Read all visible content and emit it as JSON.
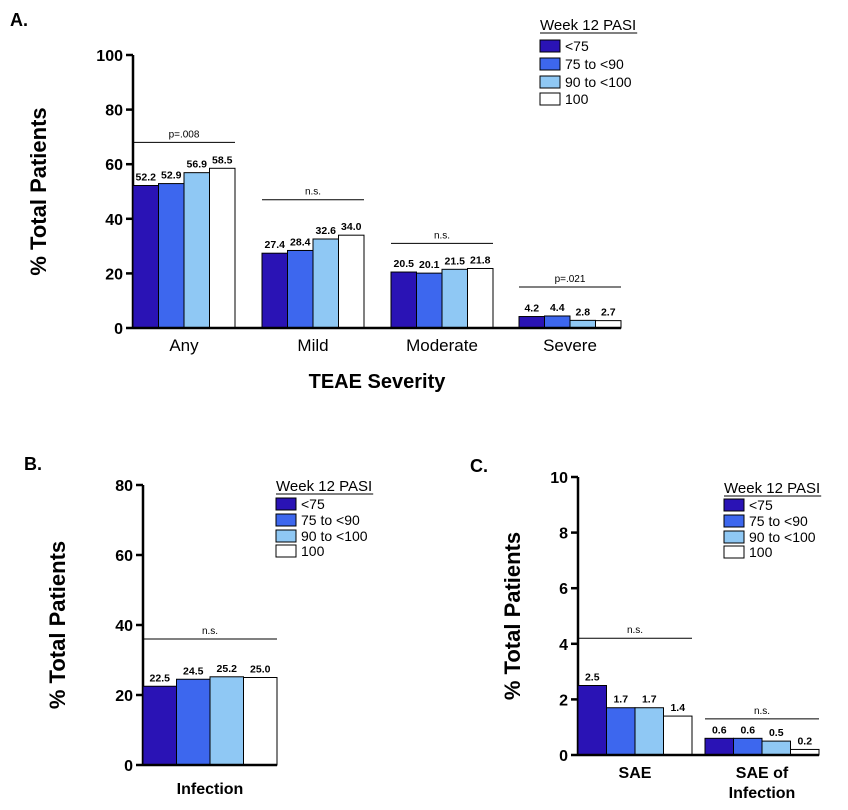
{
  "colors": {
    "series": [
      "#2a13b5",
      "#3d67ee",
      "#8fc8f4",
      "#ffffff"
    ],
    "axis": "#000000",
    "bar_stroke": "#000000"
  },
  "chart_data": [
    {
      "panel": "A.",
      "type": "bar",
      "ylabel": "% Total Patients",
      "xlabel": "TEAE Severity",
      "ylim": [
        0,
        100
      ],
      "yticks": [
        0,
        20,
        40,
        60,
        80,
        100
      ],
      "categories": [
        "Any",
        "Mild",
        "Moderate",
        "Severe"
      ],
      "legend_title": "Week 12 PASI",
      "legend_position": "top-right",
      "grid": false,
      "series": [
        {
          "name": "<75",
          "values": [
            52.2,
            27.4,
            20.5,
            4.2
          ]
        },
        {
          "name": "75 to <90",
          "values": [
            52.9,
            28.4,
            20.1,
            4.4
          ]
        },
        {
          "name": "90 to <100",
          "values": [
            56.9,
            32.6,
            21.5,
            2.8
          ]
        },
        {
          "name": "100",
          "values": [
            58.5,
            34.0,
            21.8,
            2.7
          ]
        }
      ],
      "data_labels": [
        [
          "52.2",
          "52.9",
          "56.9",
          "58.5"
        ],
        [
          "27.4",
          "28.4",
          "32.6",
          "34.0"
        ],
        [
          "20.5",
          "20.1",
          "21.5",
          "21.8"
        ],
        [
          "4.2",
          "4.4",
          "2.8",
          "2.7"
        ]
      ],
      "significance": [
        {
          "category": "Any",
          "label": "p=.008",
          "level": 68
        },
        {
          "category": "Mild",
          "label": "n.s.",
          "level": 47
        },
        {
          "category": "Moderate",
          "label": "n.s.",
          "level": 31
        },
        {
          "category": "Severe",
          "label": "p=.021",
          "level": 15
        }
      ]
    },
    {
      "panel": "B.",
      "type": "bar",
      "ylabel": "% Total Patients",
      "xlabel": "",
      "ylim": [
        0,
        80
      ],
      "yticks": [
        0,
        20,
        40,
        60,
        80
      ],
      "categories": [
        "Infection"
      ],
      "legend_title": "Week 12 PASI",
      "legend_position": "top-right",
      "grid": false,
      "series": [
        {
          "name": "<75",
          "values": [
            22.5
          ]
        },
        {
          "name": "75 to <90",
          "values": [
            24.5
          ]
        },
        {
          "name": "90 to <100",
          "values": [
            25.2
          ]
        },
        {
          "name": "100",
          "values": [
            25.0
          ]
        }
      ],
      "data_labels": [
        [
          "22.5",
          "24.5",
          "25.2",
          "25.0"
        ]
      ],
      "significance": [
        {
          "category": "Infection",
          "label": "n.s.",
          "level": 36
        }
      ]
    },
    {
      "panel": "C.",
      "type": "bar",
      "ylabel": "% Total Patients",
      "xlabel": "",
      "ylim": [
        0,
        10
      ],
      "yticks": [
        0,
        2,
        4,
        6,
        8,
        10
      ],
      "categories": [
        "SAE",
        "SAE of\nInfection"
      ],
      "legend_title": "Week 12 PASI",
      "legend_position": "top-right",
      "grid": false,
      "series": [
        {
          "name": "<75",
          "values": [
            2.5,
            0.6
          ]
        },
        {
          "name": "75 to <90",
          "values": [
            1.7,
            0.6
          ]
        },
        {
          "name": "90 to <100",
          "values": [
            1.7,
            0.5
          ]
        },
        {
          "name": "100",
          "values": [
            1.4,
            0.2
          ]
        }
      ],
      "data_labels": [
        [
          "2.5",
          "1.7",
          "1.7",
          "1.4"
        ],
        [
          "0.6",
          "0.6",
          "0.5",
          "0.2"
        ]
      ],
      "significance": [
        {
          "category": "SAE",
          "label": "n.s.",
          "level": 4.2
        },
        {
          "category": "SAE of\nInfection",
          "label": "n.s.",
          "level": 1.3
        }
      ]
    }
  ]
}
